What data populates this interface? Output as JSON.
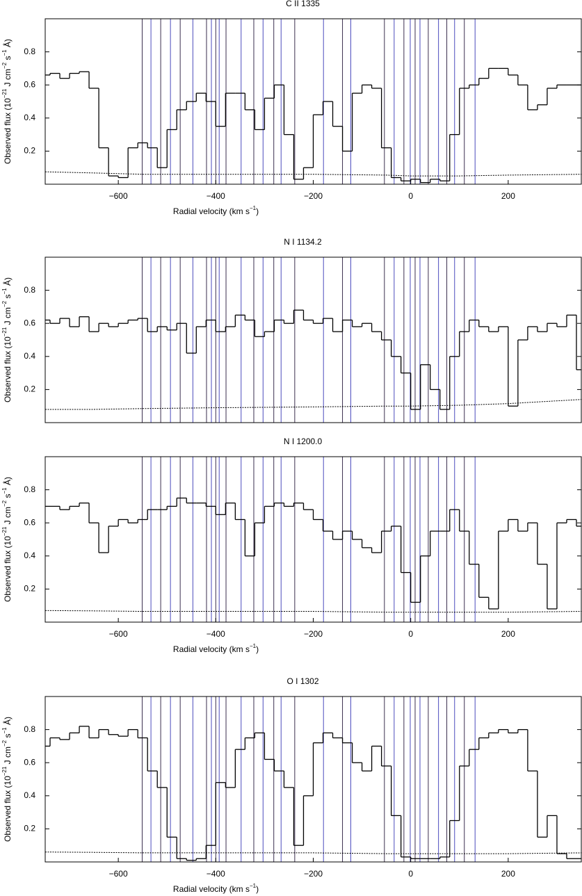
{
  "velocity_markers": {
    "values": [
      -551,
      -533,
      -513,
      -493,
      -473,
      -447,
      -419,
      -409,
      -400,
      -393,
      -379,
      -348,
      -322,
      -303,
      -281,
      -266,
      -238,
      -179,
      -140,
      -123,
      -54,
      -34,
      -14,
      -1,
      9,
      19,
      36,
      57,
      74,
      90,
      110,
      132
    ],
    "colors": [
      "#3a2e4e",
      "#4b4bbd",
      "#3a2e4e",
      "#4b4bbd",
      "#3a2e4e",
      "#4b4bbd",
      "#3a2e4e",
      "#4b4bbd",
      "#3a2e4e",
      "#4b4bbd",
      "#3a2e4e",
      "#4b4bbd",
      "#3a2e4e",
      "#4b4bbd",
      "#3a2e4e",
      "#4b4bbd",
      "#3a2e4e",
      "#4b4bbd",
      "#3a2e4e",
      "#4b4bbd",
      "#3a2e4e",
      "#4b4bbd",
      "#3a2e4e",
      "#4b4bbd",
      "#3a2e4e",
      "#4b4bbd",
      "#3a2e4e",
      "#4b4bbd",
      "#3a2e4e",
      "#4b4bbd",
      "#3a2e4e",
      "#4b4bbd"
    ]
  },
  "chart_data": [
    {
      "type": "line",
      "title": "C II 1335",
      "ylabel": [
        "Observed flux (10",
        "−21",
        " J cm",
        "−2",
        " s",
        "−1",
        " Å)"
      ],
      "xlabel": [
        "Radial velocity (km s",
        "−1",
        ")"
      ],
      "xlim": [
        -750,
        350
      ],
      "ylim": [
        0,
        1
      ],
      "xticks": [
        {
          "value": -600,
          "label": "−600"
        },
        {
          "value": -400,
          "label": "−400"
        },
        {
          "value": -200,
          "label": "−200"
        },
        0,
        200
      ],
      "yticks": [
        0.2,
        0.4,
        0.6,
        0.8
      ],
      "x": [
        -750,
        -730,
        -710,
        -690,
        -670,
        -650,
        -630,
        -610,
        -590,
        -570,
        -550,
        -530,
        -510,
        -490,
        -470,
        -450,
        -430,
        -410,
        -390,
        -370,
        -350,
        -330,
        -310,
        -290,
        -270,
        -250,
        -230,
        -210,
        -190,
        -170,
        -150,
        -130,
        -110,
        -90,
        -70,
        -50,
        -30,
        -10,
        10,
        30,
        50,
        70,
        90,
        110,
        130,
        150,
        170,
        190,
        210,
        230,
        250,
        270,
        290,
        310,
        330,
        350
      ],
      "series": [
        {
          "color": "#000000",
          "values": [
            0.66,
            0.67,
            0.64,
            0.67,
            0.68,
            0.58,
            0.22,
            0.05,
            0.04,
            0.22,
            0.25,
            0.22,
            0.1,
            0.33,
            0.45,
            0.5,
            0.55,
            0.5,
            0.35,
            0.55,
            0.55,
            0.45,
            0.33,
            0.52,
            0.6,
            0.3,
            0.03,
            0.1,
            0.42,
            0.5,
            0.35,
            0.2,
            0.55,
            0.6,
            0.58,
            0.22,
            0.04,
            0.02,
            0.03,
            0.01,
            0.03,
            0.02,
            0.3,
            0.58,
            0.6,
            0.64,
            0.7,
            0.7,
            0.66,
            0.6,
            0.45,
            0.48,
            0.58,
            0.6,
            0.6,
            0.6
          ]
        },
        {
          "color": "#000000",
          "x": [
            -750,
            -650,
            -550,
            -400,
            -200,
            -50,
            0,
            100,
            200,
            350
          ],
          "values": [
            0.075,
            0.068,
            0.06,
            0.06,
            0.06,
            0.055,
            0.05,
            0.05,
            0.055,
            0.06
          ]
        }
      ]
    },
    {
      "type": "line",
      "title": "N I 1134.2",
      "ylabel": [
        "Observed flux (10",
        "−21",
        " J cm",
        "−2",
        " s",
        "−1",
        " Å)"
      ],
      "xlim": [
        -750,
        350
      ],
      "ylim": [
        0,
        1
      ],
      "yticks": [
        0.2,
        0.4,
        0.6,
        0.8
      ],
      "x": [
        -750,
        -730,
        -710,
        -690,
        -670,
        -650,
        -630,
        -610,
        -590,
        -570,
        -550,
        -530,
        -510,
        -490,
        -470,
        -450,
        -430,
        -410,
        -390,
        -370,
        -350,
        -330,
        -310,
        -290,
        -270,
        -250,
        -230,
        -210,
        -190,
        -170,
        -150,
        -130,
        -110,
        -90,
        -70,
        -50,
        -30,
        -10,
        10,
        30,
        50,
        70,
        90,
        110,
        130,
        150,
        170,
        190,
        210,
        230,
        250,
        270,
        290,
        310,
        330,
        350
      ],
      "series": [
        {
          "color": "#000000",
          "values": [
            0.62,
            0.6,
            0.63,
            0.58,
            0.64,
            0.55,
            0.6,
            0.58,
            0.6,
            0.62,
            0.63,
            0.55,
            0.58,
            0.56,
            0.6,
            0.42,
            0.58,
            0.62,
            0.55,
            0.58,
            0.65,
            0.62,
            0.52,
            0.55,
            0.62,
            0.6,
            0.68,
            0.62,
            0.6,
            0.63,
            0.55,
            0.62,
            0.58,
            0.6,
            0.55,
            0.5,
            0.4,
            0.3,
            0.08,
            0.35,
            0.2,
            0.08,
            0.4,
            0.55,
            0.62,
            0.58,
            0.55,
            0.58,
            0.1,
            0.5,
            0.58,
            0.55,
            0.6,
            0.58,
            0.65,
            0.32
          ]
        },
        {
          "color": "#000000",
          "x": [
            -750,
            -650,
            -550,
            -400,
            -200,
            -50,
            0,
            100,
            200,
            350
          ],
          "values": [
            0.08,
            0.08,
            0.085,
            0.09,
            0.095,
            0.1,
            0.1,
            0.105,
            0.115,
            0.14
          ]
        }
      ]
    },
    {
      "type": "line",
      "title": "N I 1200.0",
      "ylabel": [
        "Observed flux (10",
        "−21",
        " J cm",
        "−2",
        " s",
        "−1",
        " Å)"
      ],
      "xlabel": [
        "Radial velocity (km s",
        "−1",
        ")"
      ],
      "xlim": [
        -750,
        350
      ],
      "ylim": [
        0,
        1
      ],
      "xticks": [
        {
          "value": -600,
          "label": "−600"
        },
        {
          "value": -400,
          "label": "−400"
        },
        {
          "value": -200,
          "label": "−200"
        },
        0,
        200
      ],
      "yticks": [
        0.2,
        0.4,
        0.6,
        0.8
      ],
      "x": [
        -750,
        -730,
        -710,
        -690,
        -670,
        -650,
        -630,
        -610,
        -590,
        -570,
        -550,
        -530,
        -510,
        -490,
        -470,
        -450,
        -430,
        -410,
        -390,
        -370,
        -350,
        -330,
        -310,
        -290,
        -270,
        -250,
        -230,
        -210,
        -190,
        -170,
        -150,
        -130,
        -110,
        -90,
        -70,
        -50,
        -30,
        -10,
        10,
        30,
        50,
        70,
        90,
        110,
        130,
        150,
        170,
        190,
        210,
        230,
        250,
        270,
        290,
        310,
        330,
        350
      ],
      "series": [
        {
          "color": "#000000",
          "values": [
            0.7,
            0.7,
            0.68,
            0.7,
            0.72,
            0.6,
            0.42,
            0.58,
            0.62,
            0.6,
            0.62,
            0.68,
            0.68,
            0.7,
            0.75,
            0.72,
            0.72,
            0.7,
            0.65,
            0.72,
            0.62,
            0.4,
            0.6,
            0.7,
            0.72,
            0.7,
            0.72,
            0.68,
            0.62,
            0.55,
            0.5,
            0.55,
            0.5,
            0.45,
            0.42,
            0.55,
            0.58,
            0.3,
            0.12,
            0.4,
            0.55,
            0.55,
            0.68,
            0.55,
            0.35,
            0.15,
            0.08,
            0.55,
            0.62,
            0.55,
            0.6,
            0.35,
            0.08,
            0.6,
            0.62,
            0.58
          ]
        },
        {
          "color": "#000000",
          "x": [
            -750,
            -650,
            -550,
            -400,
            -200,
            -50,
            0,
            100,
            200,
            350
          ],
          "values": [
            0.07,
            0.068,
            0.065,
            0.065,
            0.065,
            0.06,
            0.06,
            0.06,
            0.06,
            0.065
          ]
        }
      ]
    },
    {
      "type": "line",
      "title": "O I 1302",
      "ylabel": [
        "Observed flux (10",
        "−21",
        " J cm",
        "−2",
        " s",
        "−1",
        " Å)"
      ],
      "xlabel": [
        "Radial velocity (km s",
        "−1",
        ")"
      ],
      "xlim": [
        -750,
        350
      ],
      "ylim": [
        0,
        1
      ],
      "xticks": [
        {
          "value": -600,
          "label": "−600"
        },
        {
          "value": -400,
          "label": "−400"
        },
        {
          "value": -200,
          "label": "−200"
        },
        0,
        200
      ],
      "yticks": [
        0.2,
        0.4,
        0.6,
        0.8
      ],
      "x": [
        -750,
        -730,
        -710,
        -690,
        -670,
        -650,
        -630,
        -610,
        -590,
        -570,
        -550,
        -530,
        -510,
        -490,
        -470,
        -450,
        -430,
        -410,
        -390,
        -370,
        -350,
        -330,
        -310,
        -290,
        -270,
        -250,
        -230,
        -210,
        -190,
        -170,
        -150,
        -130,
        -110,
        -90,
        -70,
        -50,
        -30,
        -10,
        10,
        30,
        50,
        70,
        90,
        110,
        130,
        150,
        170,
        190,
        210,
        230,
        250,
        270,
        290,
        310,
        330,
        350
      ],
      "series": [
        {
          "color": "#000000",
          "values": [
            0.7,
            0.75,
            0.74,
            0.78,
            0.82,
            0.75,
            0.8,
            0.77,
            0.76,
            0.8,
            0.75,
            0.55,
            0.45,
            0.15,
            0.02,
            0.01,
            0.02,
            0.1,
            0.48,
            0.45,
            0.68,
            0.75,
            0.78,
            0.62,
            0.55,
            0.45,
            0.1,
            0.4,
            0.72,
            0.78,
            0.75,
            0.72,
            0.6,
            0.55,
            0.7,
            0.58,
            0.28,
            0.03,
            0.02,
            0.02,
            0.02,
            0.03,
            0.25,
            0.58,
            0.68,
            0.75,
            0.78,
            0.8,
            0.78,
            0.8,
            0.55,
            0.15,
            0.28,
            0.05,
            0.02,
            0.02
          ]
        },
        {
          "color": "#000000",
          "x": [
            -750,
            -650,
            -550,
            -400,
            -200,
            -50,
            0,
            100,
            200,
            350
          ],
          "values": [
            0.06,
            0.058,
            0.055,
            0.055,
            0.055,
            0.05,
            0.05,
            0.05,
            0.05,
            0.055
          ]
        }
      ]
    }
  ]
}
